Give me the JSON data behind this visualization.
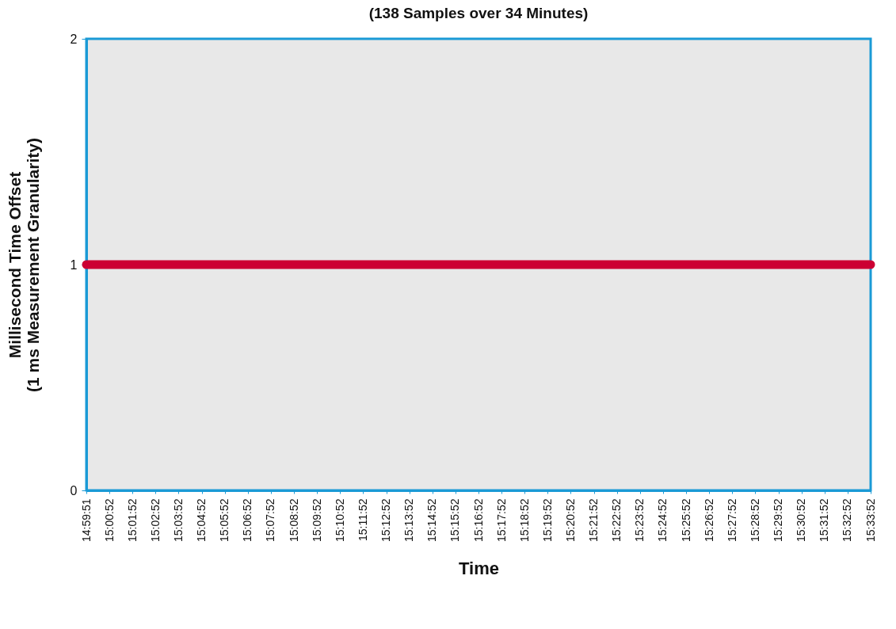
{
  "chart_data": {
    "type": "line",
    "title": "(138 Samples over 34 Minutes)",
    "xlabel": "Time",
    "ylabel": "Millisecond Time Offset\n(1 ms Measurement Granularity)",
    "categories": [
      "14:59:51",
      "15:00:52",
      "15:01:52",
      "15:02:52",
      "15:03:52",
      "15:04:52",
      "15:05:52",
      "15:06:52",
      "15:07:52",
      "15:08:52",
      "15:09:52",
      "15:10:52",
      "15:11:52",
      "15:12:52",
      "15:13:52",
      "15:14:52",
      "15:15:52",
      "15:16:52",
      "15:17:52",
      "15:18:52",
      "15:19:52",
      "15:20:52",
      "15:21:52",
      "15:22:52",
      "15:23:52",
      "15:24:52",
      "15:25:52",
      "15:26:52",
      "15:27:52",
      "15:28:52",
      "15:29:52",
      "15:30:52",
      "15:31:52",
      "15:32:52",
      "15:33:52"
    ],
    "series": [
      {
        "color": "#cc0033",
        "values": [
          1,
          1,
          1,
          1,
          1,
          1,
          1,
          1,
          1,
          1,
          1,
          1,
          1,
          1,
          1,
          1,
          1,
          1,
          1,
          1,
          1,
          1,
          1,
          1,
          1,
          1,
          1,
          1,
          1,
          1,
          1,
          1,
          1,
          1,
          1
        ]
      }
    ],
    "ylim": [
      0,
      2
    ],
    "yticks": [
      0,
      1,
      2
    ],
    "grid": false,
    "legend": false
  }
}
